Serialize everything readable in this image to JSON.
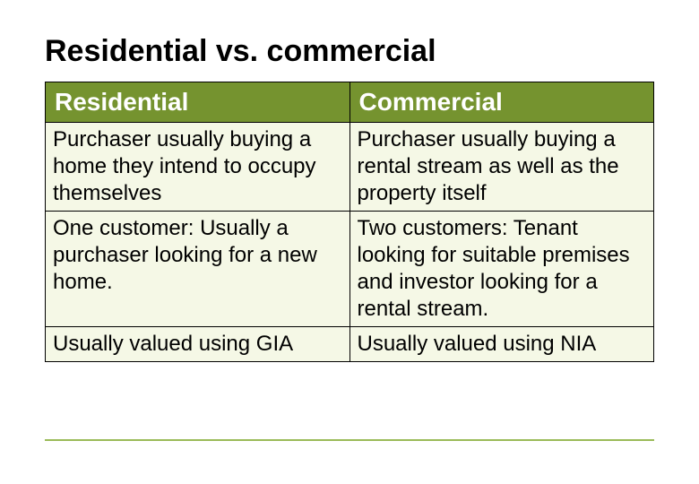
{
  "title": "Residential vs. commercial",
  "table": {
    "header_bg": "#75932f",
    "header_text_color": "#ffffff",
    "body_bg": "#f5f8e6",
    "border_color": "#000000",
    "columns": [
      {
        "label": "Residential"
      },
      {
        "label": "Commercial"
      }
    ],
    "rows": [
      [
        "Purchaser usually buying a home they intend to occupy themselves",
        "Purchaser usually buying a rental stream as well as the property itself"
      ],
      [
        "One customer: Usually a purchaser looking for a new home.",
        "Two customers: Tenant looking for suitable premises and investor looking for a rental stream."
      ],
      [
        "Usually valued using GIA",
        "Usually valued using NIA"
      ]
    ]
  },
  "footer_rule_color": "#9bbb59"
}
